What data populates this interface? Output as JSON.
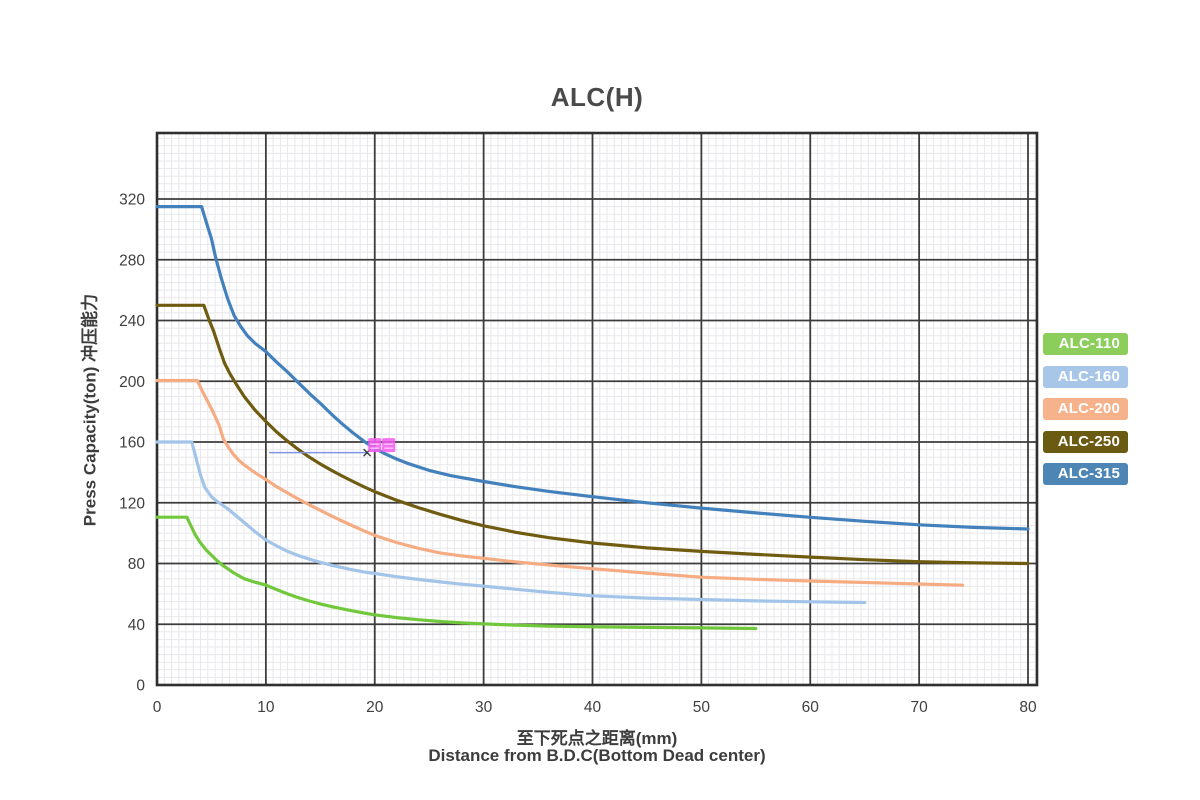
{
  "title": "ALC(H)",
  "axes": {
    "x": {
      "title_zh": "至下死点之距离(mm)",
      "title_en": "Distance from B.D.C(Bottom Dead center)",
      "ticks": [
        0,
        10,
        20,
        30,
        40,
        50,
        60,
        70,
        80
      ],
      "range": [
        0,
        80
      ]
    },
    "y": {
      "title": "Press Capacity(ton)  冲压能力",
      "ticks": [
        0,
        40,
        80,
        120,
        160,
        200,
        240,
        280,
        320
      ],
      "range": [
        0,
        363
      ]
    }
  },
  "legend": {
    "items": [
      {
        "label": "ALC-110",
        "color": "#8bce5b"
      },
      {
        "label": "ALC-160",
        "color": "#a8c6e8"
      },
      {
        "label": "ALC-200",
        "color": "#f5b28b"
      },
      {
        "label": "ALC-250",
        "color": "#6b5a12"
      },
      {
        "label": "ALC-315",
        "color": "#4d86b5"
      }
    ]
  },
  "annotation": {
    "reference_line": {
      "x1_mm": 10.3,
      "x2_mm": 19.3,
      "ton": 153,
      "color": "#7f94e3"
    },
    "marker": {
      "shape": "x",
      "x_mm": 19.3,
      "ton": 153,
      "color": "#333333"
    },
    "highlight": {
      "x_mm": 19.4,
      "ton_bottom": 153.3,
      "blocks": 2,
      "block_w": 13,
      "block_h": 14,
      "color": "#f25ff0"
    }
  },
  "chart_data": {
    "type": "line",
    "title": "ALC(H)",
    "xlabel": "至下死点之距离(mm) / Distance from B.D.C(Bottom Dead center)",
    "ylabel": "Press Capacity(ton) 冲压能力",
    "xlim": [
      0,
      80
    ],
    "ylim": [
      0,
      363
    ],
    "x_major_step": 10,
    "y_major_step": 40,
    "grid": "major-dark with fine light minor graph-paper grid",
    "legend_position": "right-outside",
    "series": [
      {
        "name": "ALC-110",
        "color": "#72c83c",
        "points": [
          [
            0,
            110.5
          ],
          [
            2.75,
            110.5
          ],
          [
            3.1,
            105
          ],
          [
            3.5,
            99
          ],
          [
            4,
            93.5
          ],
          [
            4.5,
            89
          ],
          [
            5,
            85.5
          ],
          [
            5.5,
            82
          ],
          [
            6,
            79
          ],
          [
            6.5,
            76.5
          ],
          [
            7,
            74
          ],
          [
            8,
            70
          ],
          [
            9,
            67.7
          ],
          [
            10,
            65.8
          ],
          [
            11,
            62.8
          ],
          [
            12,
            60
          ],
          [
            13,
            57.5
          ],
          [
            14,
            55.3
          ],
          [
            15,
            53.4
          ],
          [
            16,
            51.7
          ],
          [
            17,
            50.2
          ],
          [
            18,
            48.8
          ],
          [
            19,
            47.4
          ],
          [
            20,
            46.2
          ],
          [
            22,
            44.4
          ],
          [
            24,
            43
          ],
          [
            26,
            41.8
          ],
          [
            28,
            40.9
          ],
          [
            30,
            40.2
          ],
          [
            33,
            39.4
          ],
          [
            36,
            38.8
          ],
          [
            40,
            38.3
          ],
          [
            45,
            37.9
          ],
          [
            50,
            37.6
          ],
          [
            55,
            37.2
          ]
        ]
      },
      {
        "name": "ALC-160",
        "color": "#a3c4e9",
        "points": [
          [
            0,
            160
          ],
          [
            3.2,
            160
          ],
          [
            3.6,
            149
          ],
          [
            4,
            138
          ],
          [
            4.4,
            130
          ],
          [
            5,
            124
          ],
          [
            5.5,
            121
          ],
          [
            6,
            118.5
          ],
          [
            6.5,
            116
          ],
          [
            7,
            113
          ],
          [
            7.5,
            110
          ],
          [
            8,
            107
          ],
          [
            9,
            101
          ],
          [
            10,
            95.5
          ],
          [
            11,
            91.5
          ],
          [
            12,
            88
          ],
          [
            13,
            85.2
          ],
          [
            14,
            82.8
          ],
          [
            15,
            80.8
          ],
          [
            16,
            78.9
          ],
          [
            17,
            77.3
          ],
          [
            18,
            75.8
          ],
          [
            19,
            74.5
          ],
          [
            20,
            73.4
          ],
          [
            22,
            71.3
          ],
          [
            24,
            69.5
          ],
          [
            26,
            67.9
          ],
          [
            28,
            66.4
          ],
          [
            30,
            65.1
          ],
          [
            33,
            63
          ],
          [
            36,
            61
          ],
          [
            40,
            58.7
          ],
          [
            45,
            57.2
          ],
          [
            50,
            56.3
          ],
          [
            55,
            55.4
          ],
          [
            60,
            54.8
          ],
          [
            65,
            54.3
          ]
        ]
      },
      {
        "name": "ALC-200",
        "color": "#f6ac83",
        "points": [
          [
            0,
            200.5
          ],
          [
            3.7,
            200.5
          ],
          [
            4.2,
            193
          ],
          [
            4.7,
            186
          ],
          [
            5.2,
            179
          ],
          [
            5.7,
            171
          ],
          [
            6.1,
            162
          ],
          [
            6.6,
            156
          ],
          [
            7,
            152
          ],
          [
            7.5,
            148
          ],
          [
            8,
            145
          ],
          [
            9,
            139.8
          ],
          [
            10,
            135.3
          ],
          [
            11,
            130.5
          ],
          [
            12,
            126.4
          ],
          [
            13,
            122.4
          ],
          [
            14,
            118.6
          ],
          [
            15,
            115
          ],
          [
            16,
            111.4
          ],
          [
            17,
            108
          ],
          [
            18,
            104.7
          ],
          [
            19,
            101.5
          ],
          [
            20,
            98.5
          ],
          [
            22,
            93.8
          ],
          [
            24,
            90
          ],
          [
            26,
            87
          ],
          [
            28,
            85
          ],
          [
            30,
            83.4
          ],
          [
            33,
            81
          ],
          [
            36,
            79
          ],
          [
            40,
            76.6
          ],
          [
            45,
            73.7
          ],
          [
            50,
            71
          ],
          [
            55,
            69.6
          ],
          [
            60,
            68.5
          ],
          [
            65,
            67.5
          ],
          [
            70,
            66.5
          ],
          [
            74,
            65.7
          ]
        ]
      },
      {
        "name": "ALC-250",
        "color": "#6f5c10",
        "points": [
          [
            0,
            250
          ],
          [
            4.3,
            250
          ],
          [
            4.8,
            240
          ],
          [
            5.2,
            233
          ],
          [
            5.7,
            222
          ],
          [
            6.2,
            212
          ],
          [
            6.7,
            205
          ],
          [
            7.2,
            199
          ],
          [
            8,
            190
          ],
          [
            9,
            181
          ],
          [
            10,
            173.5
          ],
          [
            11,
            166.5
          ],
          [
            12,
            160.5
          ],
          [
            13,
            155
          ],
          [
            14,
            150
          ],
          [
            15,
            145.5
          ],
          [
            16,
            141.4
          ],
          [
            17,
            137.6
          ],
          [
            18,
            134
          ],
          [
            19,
            130.5
          ],
          [
            20,
            127.3
          ],
          [
            22,
            121.7
          ],
          [
            24,
            116.8
          ],
          [
            26,
            112.4
          ],
          [
            28,
            108.4
          ],
          [
            30,
            104.8
          ],
          [
            33,
            100.5
          ],
          [
            36,
            97
          ],
          [
            40,
            93.5
          ],
          [
            45,
            90.3
          ],
          [
            50,
            88
          ],
          [
            55,
            86
          ],
          [
            60,
            84.2
          ],
          [
            65,
            82.5
          ],
          [
            70,
            81.2
          ],
          [
            75,
            80.4
          ],
          [
            80,
            80
          ]
        ]
      },
      {
        "name": "ALC-315",
        "color": "#4381bd",
        "points": [
          [
            0,
            315
          ],
          [
            4.1,
            315
          ],
          [
            4.6,
            303
          ],
          [
            5,
            294
          ],
          [
            5.4,
            281
          ],
          [
            5.9,
            268
          ],
          [
            6.5,
            254
          ],
          [
            7.1,
            243
          ],
          [
            7.7,
            236
          ],
          [
            8.3,
            230
          ],
          [
            9,
            225
          ],
          [
            10,
            219.5
          ],
          [
            11,
            212.5
          ],
          [
            12,
            206
          ],
          [
            13,
            199
          ],
          [
            14,
            192
          ],
          [
            15,
            185.5
          ],
          [
            16,
            178.5
          ],
          [
            17,
            172
          ],
          [
            18,
            166
          ],
          [
            19,
            160.5
          ],
          [
            20,
            155.8
          ],
          [
            21,
            152
          ],
          [
            22,
            148.8
          ],
          [
            23,
            146
          ],
          [
            25,
            141.3
          ],
          [
            27,
            137.8
          ],
          [
            30,
            134
          ],
          [
            33,
            130.5
          ],
          [
            36,
            127.5
          ],
          [
            40,
            124
          ],
          [
            45,
            120
          ],
          [
            50,
            116.5
          ],
          [
            55,
            113.3
          ],
          [
            60,
            110.4
          ],
          [
            65,
            107.8
          ],
          [
            70,
            105.5
          ],
          [
            75,
            103.8
          ],
          [
            80,
            102.7
          ]
        ]
      }
    ]
  },
  "style_colors": {
    "major_grid": "#3c3c3c",
    "minor_grid": "#e8e8ec",
    "border": "#2f2f2f",
    "tick_text": "#3f3f3f"
  }
}
